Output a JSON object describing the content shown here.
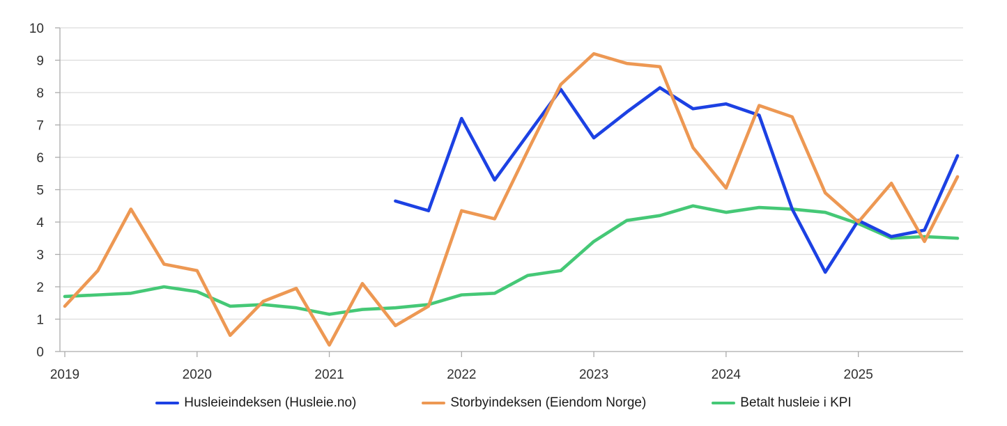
{
  "chart_data": {
    "type": "line",
    "title": "",
    "x_tick_labels": [
      "2019",
      "2020",
      "2021",
      "2022",
      "2023",
      "2024",
      "2025"
    ],
    "x_frequency": "quarterly",
    "x_range": [
      "2019Q1",
      "2025Q4"
    ],
    "y_ticks": [
      0,
      1,
      2,
      3,
      4,
      5,
      6,
      7,
      8,
      9,
      10
    ],
    "ylim": [
      0,
      10
    ],
    "grid": "horizontal",
    "legend_position": "bottom",
    "series": [
      {
        "name": "Husleieindeksen (Husleie.no)",
        "color": "#1C41E3",
        "values": [
          null,
          null,
          null,
          null,
          null,
          null,
          null,
          null,
          null,
          null,
          4.65,
          4.35,
          7.2,
          5.3,
          6.7,
          8.1,
          6.6,
          7.4,
          8.15,
          7.5,
          7.65,
          7.3,
          4.4,
          2.45,
          4.05,
          3.55,
          3.75,
          6.05
        ]
      },
      {
        "name": "Storbyindeksen (Eiendom Norge)",
        "color": "#ED9853",
        "values": [
          1.4,
          2.5,
          4.4,
          2.7,
          2.5,
          0.5,
          1.55,
          1.95,
          0.2,
          2.1,
          0.8,
          1.4,
          4.35,
          4.1,
          6.2,
          8.25,
          9.2,
          8.9,
          8.8,
          6.3,
          5.05,
          7.6,
          7.25,
          4.9,
          4.0,
          5.2,
          3.4,
          5.4
        ]
      },
      {
        "name": "Betalt husleie i KPI",
        "color": "#45C876",
        "values": [
          1.7,
          1.75,
          1.8,
          2.0,
          1.85,
          1.4,
          1.45,
          1.35,
          1.15,
          1.3,
          1.35,
          1.45,
          1.75,
          1.8,
          2.35,
          2.5,
          3.4,
          4.05,
          4.2,
          4.5,
          4.3,
          4.45,
          4.4,
          4.3,
          3.95,
          3.5,
          3.55,
          3.5
        ]
      }
    ]
  },
  "colors": {
    "gridline": "#DCDCDC",
    "axis": "#ABABAB",
    "label_text": "#303030"
  }
}
